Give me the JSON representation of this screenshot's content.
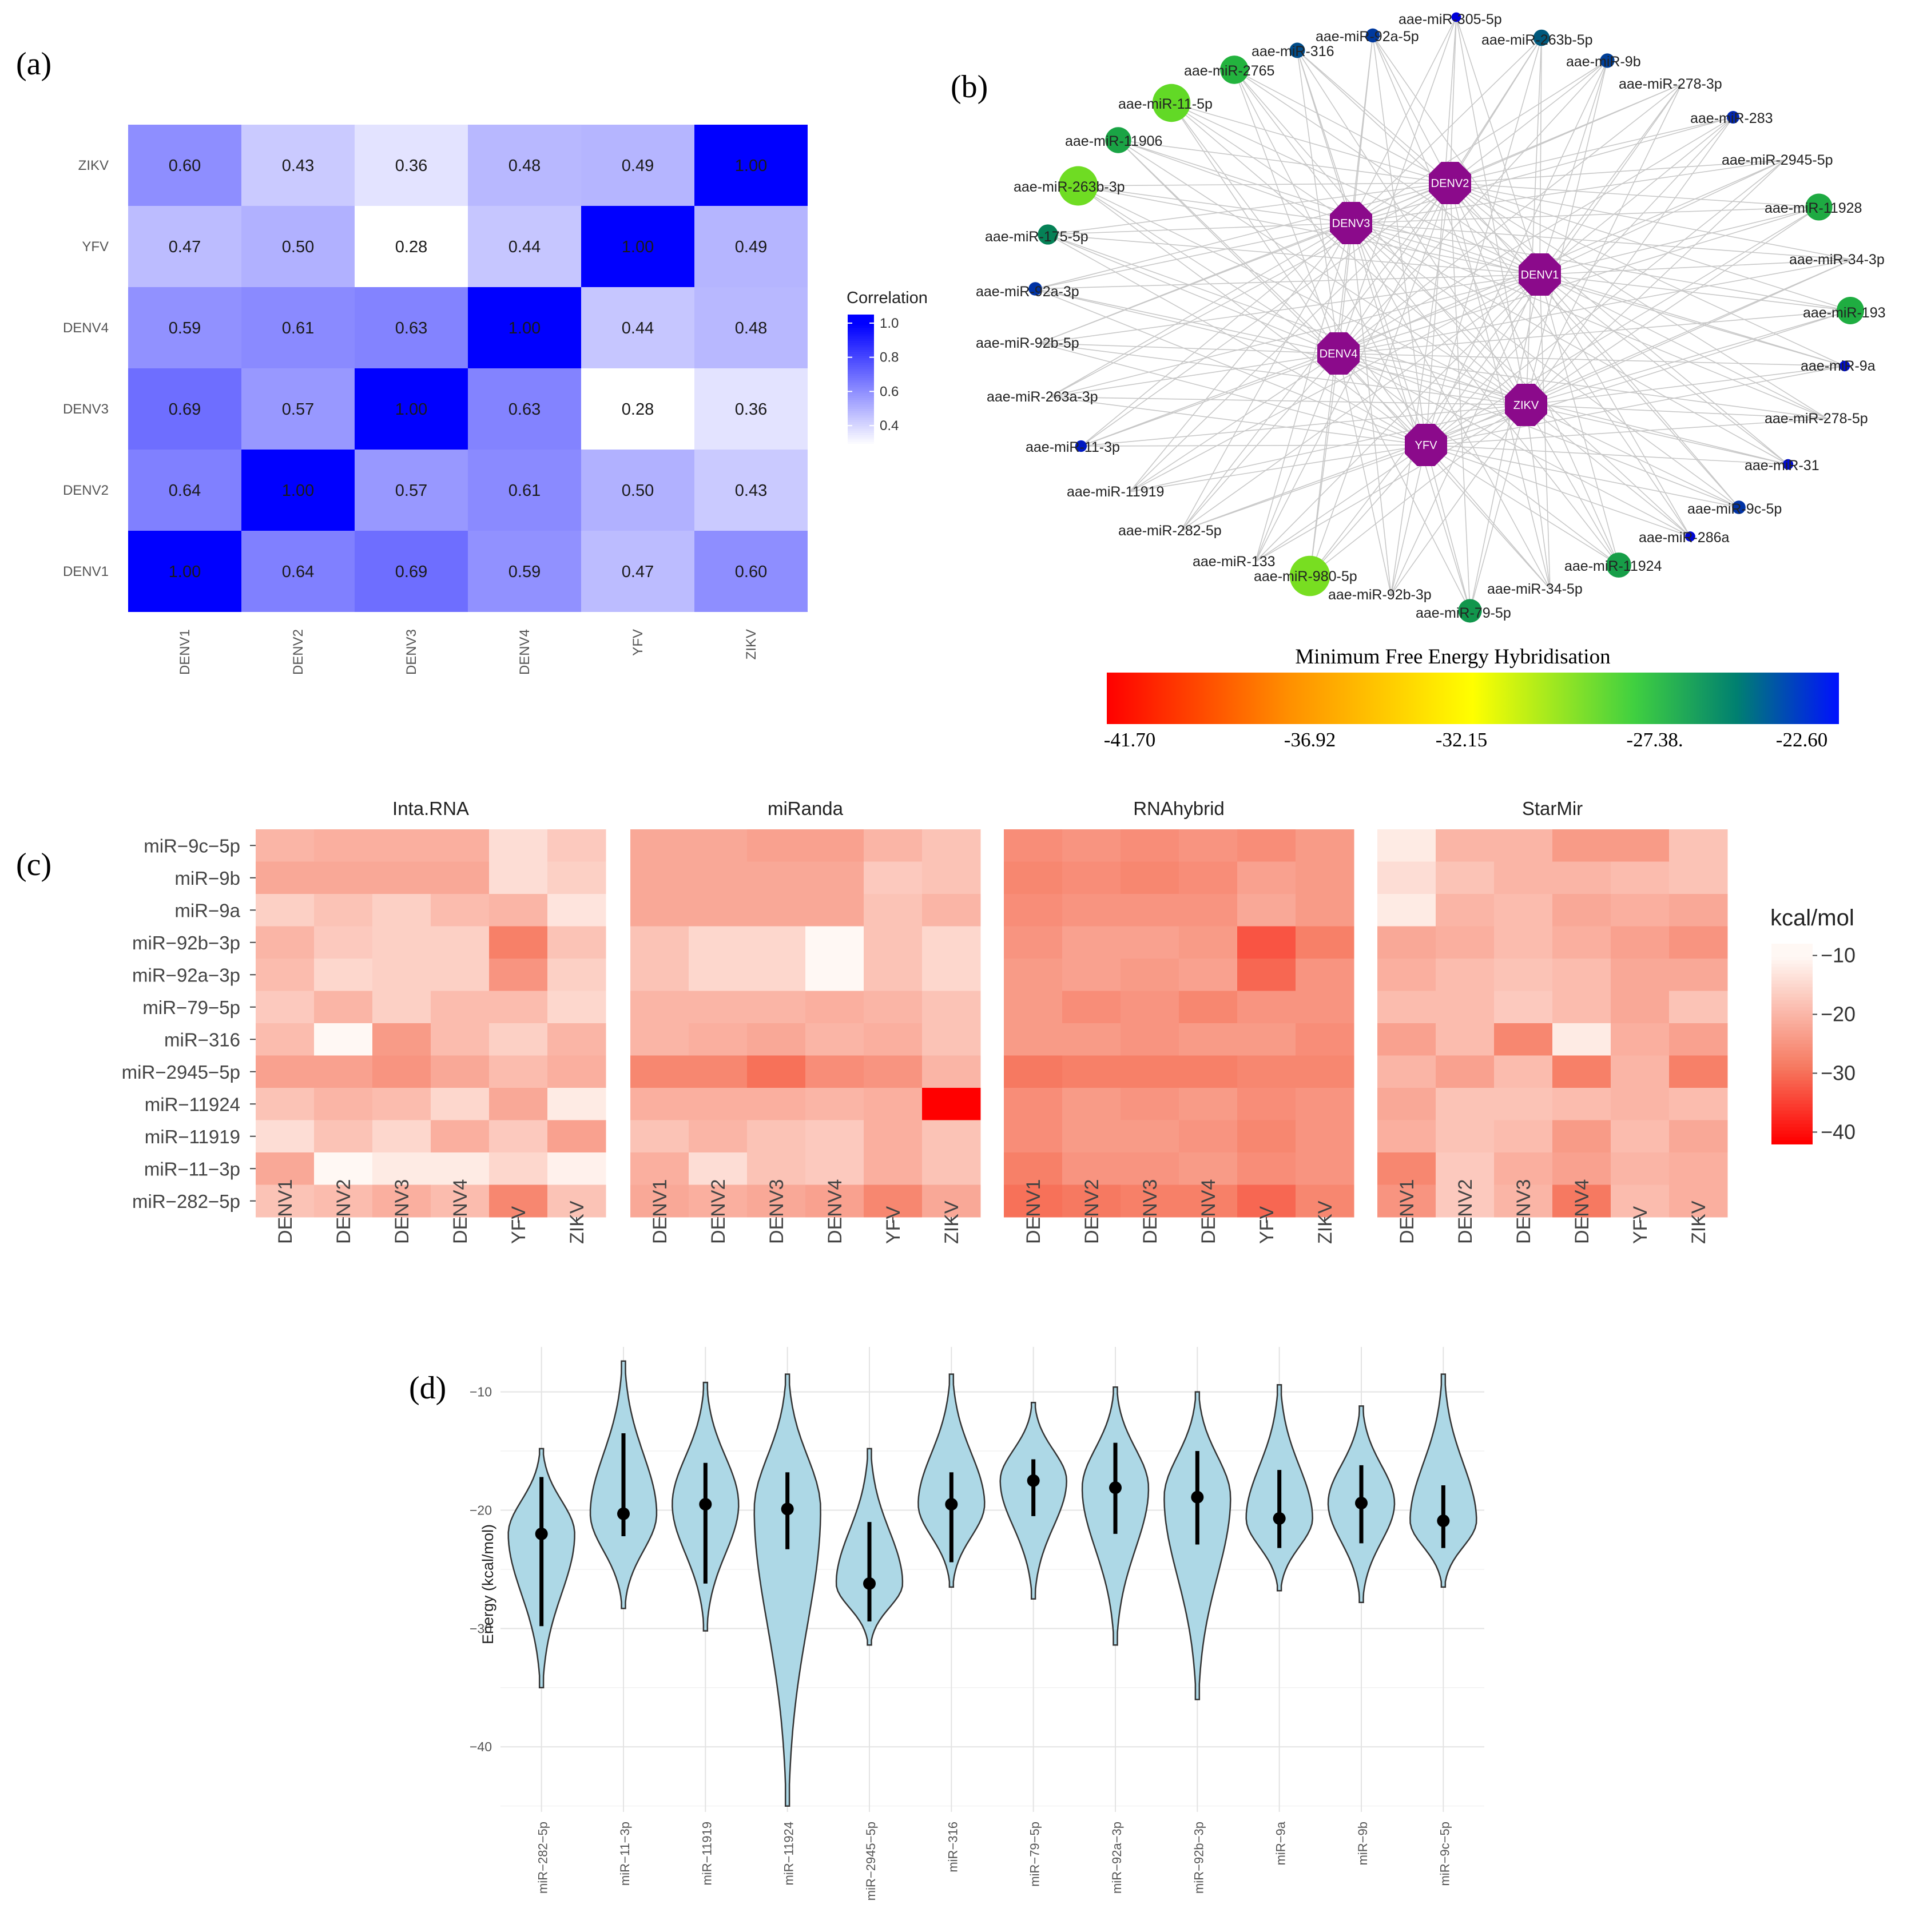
{
  "chart_data": [
    {
      "panel": "(a)",
      "type": "heatmap",
      "x_labels": [
        "DENV1",
        "DENV2",
        "DENV3",
        "DENV4",
        "YFV",
        "ZIKV"
      ],
      "y_labels_bottom_to_top": [
        "DENV1",
        "DENV2",
        "DENV3",
        "DENV4",
        "YFV",
        "ZIKV"
      ],
      "matrix": [
        [
          1.0,
          0.64,
          0.69,
          0.59,
          0.47,
          0.6
        ],
        [
          0.64,
          1.0,
          0.57,
          0.61,
          0.5,
          0.43
        ],
        [
          0.69,
          0.57,
          1.0,
          0.63,
          0.28,
          0.36
        ],
        [
          0.59,
          0.61,
          0.63,
          1.0,
          0.44,
          0.48
        ],
        [
          0.47,
          0.5,
          0.28,
          0.44,
          1.0,
          0.49
        ],
        [
          0.6,
          0.43,
          0.36,
          0.48,
          0.49,
          1.0
        ]
      ],
      "legend_title": "Correlation",
      "legend_ticks": [
        "1.0",
        "0.8",
        "0.6",
        "0.4"
      ],
      "value_range": [
        0.28,
        1.0
      ],
      "colors": {
        "low": "#ffffff",
        "high": "#0000ff"
      }
    },
    {
      "panel": "(b)",
      "type": "network",
      "hubs": [
        "DENV2",
        "DENV3",
        "DENV1",
        "DENV4",
        "ZIKV",
        "YFV"
      ],
      "mirna_nodes": [
        {
          "label": "aae-miR-305-5p",
          "mfe": -22.6
        },
        {
          "label": "aae-miR-92a-5p",
          "mfe": -23.5
        },
        {
          "label": "aae-miR-263b-5p",
          "mfe": -24.0
        },
        {
          "label": "aae-miR-316",
          "mfe": -23.8
        },
        {
          "label": "aae-miR-9b",
          "mfe": -23.6
        },
        {
          "label": "aae-miR-2765",
          "mfe": -26.5
        },
        {
          "label": "aae-miR-278-3p",
          "mfe": null
        },
        {
          "label": "aae-miR-11-5p",
          "mfe": -28.5
        },
        {
          "label": "aae-miR-283",
          "mfe": -23.2
        },
        {
          "label": "aae-miR-11906",
          "mfe": -26.0
        },
        {
          "label": "aae-miR-2945-5p",
          "mfe": null
        },
        {
          "label": "aae-miR-263b-3p",
          "mfe": -28.8
        },
        {
          "label": "aae-miR-11928",
          "mfe": -26.2
        },
        {
          "label": "aae-miR-175-5p",
          "mfe": -24.8
        },
        {
          "label": "aae-miR-34-3p",
          "mfe": null
        },
        {
          "label": "aae-miR-92a-3p",
          "mfe": -23.4
        },
        {
          "label": "aae-miR-193",
          "mfe": -26.3
        },
        {
          "label": "aae-miR-92b-5p",
          "mfe": null
        },
        {
          "label": "aae-miR-9a",
          "mfe": -22.8
        },
        {
          "label": "aae-miR-263a-3p",
          "mfe": null
        },
        {
          "label": "aae-miR-278-5p",
          "mfe": null
        },
        {
          "label": "aae-miR-11-3p",
          "mfe": -23.0
        },
        {
          "label": "aae-miR-31",
          "mfe": -22.8
        },
        {
          "label": "aae-miR-11919",
          "mfe": null
        },
        {
          "label": "aae-miR-9c-5p",
          "mfe": -23.4
        },
        {
          "label": "aae-miR-282-5p",
          "mfe": null
        },
        {
          "label": "aae-miR-286a",
          "mfe": -22.7
        },
        {
          "label": "aae-miR-133",
          "mfe": null
        },
        {
          "label": "aae-miR-980-5p",
          "mfe": -29.0
        },
        {
          "label": "aae-miR-11924",
          "mfe": -25.8
        },
        {
          "label": "aae-miR-92b-3p",
          "mfe": null
        },
        {
          "label": "aae-miR-34-5p",
          "mfe": null
        },
        {
          "label": "aae-miR-79-5p",
          "mfe": -25.5
        }
      ],
      "colorbar_title": "Minimum Free Energy Hybridisation",
      "colorbar_ticks": [
        "-41.70",
        "-36.92",
        "-32.15",
        "-27.38.",
        "-22.60"
      ],
      "colorbar_range": [
        -41.7,
        -22.6
      ]
    },
    {
      "panel": "(c)",
      "type": "heatmap",
      "facets": [
        "Inta.RNA",
        "miRanda",
        "RNAhybrid",
        "StarMir"
      ],
      "x_labels": [
        "DENV1",
        "DENV2",
        "DENV3",
        "DENV4",
        "YFV",
        "ZIKV"
      ],
      "y_labels": [
        "miR−9c−5p",
        "miR−9b",
        "miR−9a",
        "miR−92b−3p",
        "miR−92a−3p",
        "miR−79−5p",
        "miR−316",
        "miR−2945−5p",
        "miR−11924",
        "miR−11919",
        "miR−11−3p",
        "miR−282−5p"
      ],
      "values": {
        "Inta.RNA": [
          [
            -20,
            -21,
            -21,
            -21,
            -14,
            -17
          ],
          [
            -22,
            -22,
            -22,
            -22,
            -14,
            -16
          ],
          [
            -16,
            -18,
            -16,
            -19,
            -20,
            -13
          ],
          [
            -20,
            -17,
            -16,
            -16,
            -28,
            -18
          ],
          [
            -19,
            -15,
            -16,
            -16,
            -25,
            -16
          ],
          [
            -17,
            -20,
            -16,
            -19,
            -19,
            -15
          ],
          [
            -19,
            -10,
            -24,
            -19,
            -16,
            -20
          ],
          [
            -23,
            -23,
            -25,
            -22,
            -19,
            -21
          ],
          [
            -18,
            -20,
            -19,
            -15,
            -22,
            -12
          ],
          [
            -14,
            -18,
            -15,
            -21,
            -17,
            -23
          ],
          [
            -22,
            -10,
            -12,
            -12,
            -15,
            -11
          ],
          [
            -18,
            -19,
            -21,
            -19,
            -27,
            -18
          ]
        ],
        "miRanda": [
          [
            -22,
            -22,
            -23,
            -23,
            -20,
            -18
          ],
          [
            -22,
            -22,
            -22,
            -22,
            -17,
            -18
          ],
          [
            -22,
            -22,
            -22,
            -22,
            -18,
            -20
          ],
          [
            -18,
            -15,
            -15,
            -10,
            -18,
            -15
          ],
          [
            -18,
            -15,
            -15,
            -10,
            -18,
            -15
          ],
          [
            -20,
            -20,
            -20,
            -21,
            -20,
            -18
          ],
          [
            -20,
            -21,
            -22,
            -20,
            -21,
            -18
          ],
          [
            -27,
            -27,
            -30,
            -26,
            -25,
            -20
          ],
          [
            -21,
            -21,
            -21,
            -20,
            -21,
            -42
          ],
          [
            -18,
            -20,
            -18,
            -17,
            -21,
            -18
          ],
          [
            -21,
            -14,
            -18,
            -17,
            -21,
            -18
          ],
          [
            -22,
            -21,
            -22,
            -23,
            -27,
            -22
          ]
        ],
        "RNAhybrid": [
          [
            -26,
            -25,
            -26,
            -25,
            -26,
            -24
          ],
          [
            -27,
            -26,
            -27,
            -26,
            -23,
            -24
          ],
          [
            -26,
            -25,
            -25,
            -25,
            -22,
            -24
          ],
          [
            -25,
            -23,
            -23,
            -24,
            -33,
            -28
          ],
          [
            -24,
            -23,
            -24,
            -23,
            -31,
            -25
          ],
          [
            -24,
            -26,
            -25,
            -27,
            -25,
            -25
          ],
          [
            -24,
            -24,
            -25,
            -24,
            -24,
            -26
          ],
          [
            -29,
            -28,
            -28,
            -28,
            -27,
            -27
          ],
          [
            -26,
            -24,
            -25,
            -24,
            -26,
            -25
          ],
          [
            -26,
            -24,
            -24,
            -25,
            -27,
            -25
          ],
          [
            -28,
            -25,
            -25,
            -24,
            -26,
            -25
          ],
          [
            -30,
            -29,
            -28,
            -28,
            -31,
            -27
          ]
        ],
        "StarMir": [
          [
            -12,
            -20,
            -20,
            -24,
            -24,
            -18
          ],
          [
            -14,
            -18,
            -20,
            -20,
            -19,
            -18
          ],
          [
            -12,
            -20,
            -19,
            -22,
            -21,
            -22
          ],
          [
            -22,
            -21,
            -19,
            -21,
            -23,
            -25
          ],
          [
            -21,
            -19,
            -18,
            -19,
            -22,
            -22
          ],
          [
            -19,
            -19,
            -17,
            -19,
            -22,
            -18
          ],
          [
            -23,
            -19,
            -27,
            -12,
            -21,
            -23
          ],
          [
            -20,
            -23,
            -19,
            -28,
            -20,
            -28
          ],
          [
            -22,
            -18,
            -18,
            -19,
            -20,
            -19
          ],
          [
            -21,
            -18,
            -19,
            -24,
            -19,
            -22
          ],
          [
            -27,
            -17,
            -21,
            -23,
            -20,
            -21
          ],
          [
            -25,
            -17,
            -20,
            -29,
            -19,
            -21
          ]
        ]
      },
      "legend_title": "kcal/mol",
      "legend_ticks": [
        "−10",
        "−20",
        "−30",
        "−40"
      ],
      "value_range": [
        -42,
        -10
      ]
    },
    {
      "panel": "(d)",
      "type": "violin",
      "categories": [
        "miR−282−5p",
        "miR−11−3p",
        "miR−11919",
        "miR−11924",
        "miR−2945−5p",
        "miR−316",
        "miR−79−5p",
        "miR−92a−3p",
        "miR−92b−3p",
        "miR−9a",
        "miR−9b",
        "miR−9c−5p"
      ],
      "ylabel": "Energy (kcal/mol)",
      "yticks": [
        "−10",
        "−20",
        "−30",
        "−40"
      ],
      "ylim": [
        -45.5,
        -6.2
      ],
      "summaries": [
        {
          "min": -35.0,
          "max": -14.8,
          "median": -22.0,
          "lo": -29.8,
          "hi": -17.2
        },
        {
          "min": -28.3,
          "max": -7.4,
          "median": -20.3,
          "lo": -22.2,
          "hi": -13.5
        },
        {
          "min": -30.2,
          "max": -9.2,
          "median": -19.5,
          "lo": -26.2,
          "hi": -16.0
        },
        {
          "min": -45.0,
          "max": -8.5,
          "median": -19.9,
          "lo": -23.3,
          "hi": -16.8
        },
        {
          "min": -31.4,
          "max": -14.8,
          "median": -26.2,
          "lo": -29.4,
          "hi": -21.0
        },
        {
          "min": -26.5,
          "max": -8.5,
          "median": -19.5,
          "lo": -24.4,
          "hi": -16.8
        },
        {
          "min": -27.5,
          "max": -10.9,
          "median": -17.5,
          "lo": -20.5,
          "hi": -15.7
        },
        {
          "min": -31.4,
          "max": -9.6,
          "median": -18.1,
          "lo": -22.0,
          "hi": -14.3
        },
        {
          "min": -36.0,
          "max": -10.0,
          "median": -18.9,
          "lo": -22.9,
          "hi": -15.0
        },
        {
          "min": -26.8,
          "max": -9.4,
          "median": -20.7,
          "lo": -23.2,
          "hi": -16.6
        },
        {
          "min": -27.8,
          "max": -11.2,
          "median": -19.4,
          "lo": -22.8,
          "hi": -16.2
        },
        {
          "min": -26.5,
          "max": -8.5,
          "median": -20.9,
          "lo": -23.2,
          "hi": -17.9
        }
      ],
      "fill": "#add8e6"
    }
  ],
  "panel_labels": {
    "a": "(a)",
    "b": "(b)",
    "c": "(c)",
    "d": "(d)"
  }
}
